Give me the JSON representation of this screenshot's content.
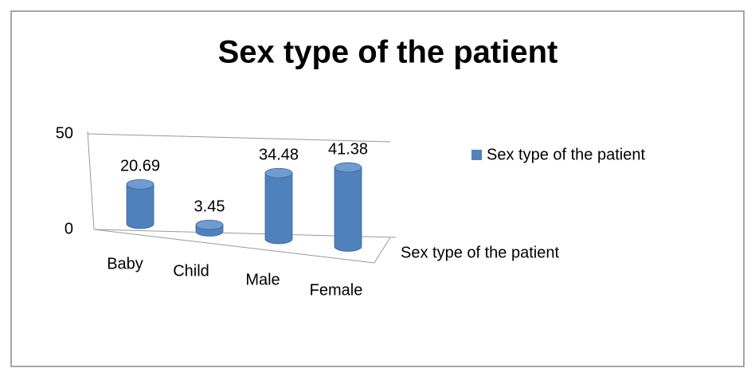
{
  "chart_data": {
    "type": "bar",
    "title": "Sex type of the patient",
    "categories": [
      "Baby",
      "Child",
      "Male",
      "Female"
    ],
    "series": [
      {
        "name": "Sex type of the patient",
        "color": "#4f81bd",
        "values": [
          20.69,
          3.45,
          34.48,
          41.38
        ]
      }
    ],
    "x_label": "Sex type of the patient",
    "ylim": [
      0,
      50
    ],
    "yticks": [
      0,
      50
    ],
    "grid": true,
    "legend": "right"
  }
}
